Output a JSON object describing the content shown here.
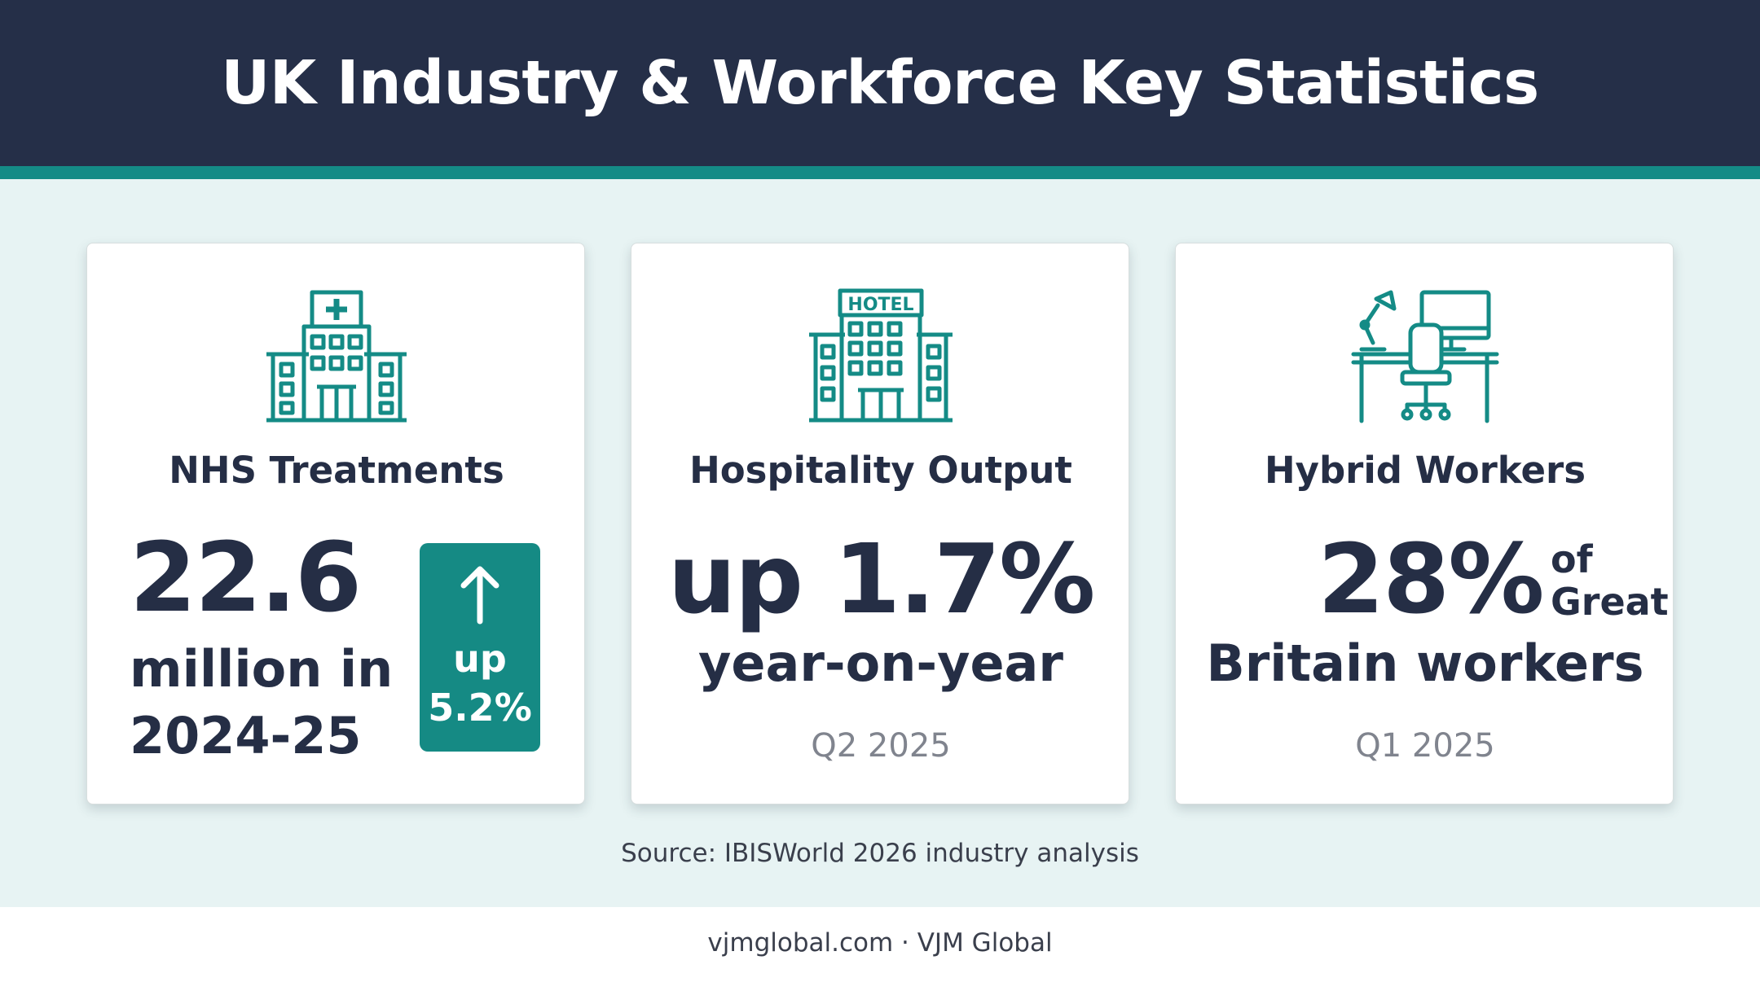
{
  "header": {
    "title": "UK Industry & Workforce Key Statistics"
  },
  "colors": {
    "navy": "#252f48",
    "teal": "#148b86",
    "background": "#e7f3f3"
  },
  "cards": [
    {
      "icon": "hospital-icon",
      "title": "NHS Treatments",
      "value": "22.6",
      "subtitle": "million in 2024-25",
      "change_icon": "arrow-up-icon",
      "change": "up 5.2%"
    },
    {
      "icon": "hotel-icon",
      "icon_text": "HOTEL",
      "title": "Hospitality Output",
      "value": "up 1.7%",
      "subtitle": "year-on-year",
      "period": "Q2 2025"
    },
    {
      "icon": "desk-workstation-icon",
      "title": "Hybrid Workers",
      "value": "28%",
      "value_suffix": "of Great",
      "subtitle": "Britain workers",
      "period": "Q1 2025"
    }
  ],
  "source": "Source: IBISWorld 2026 industry analysis",
  "footer": "vjmglobal.com · VJM Global"
}
